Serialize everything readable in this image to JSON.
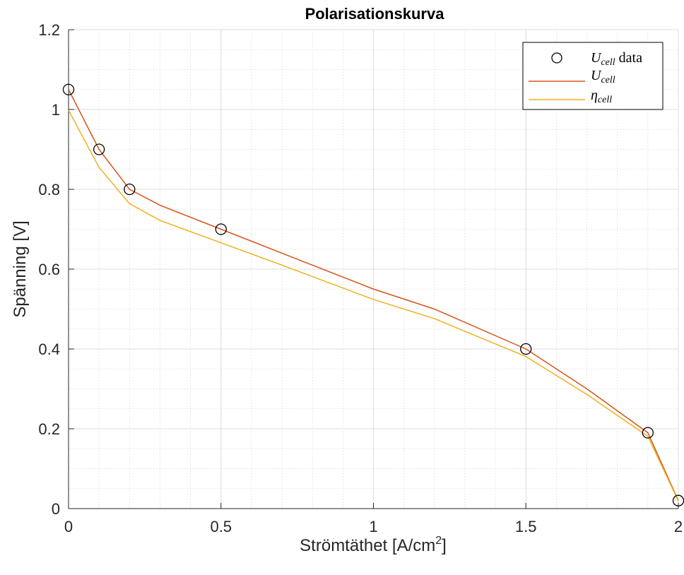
{
  "chart_data": {
    "type": "line",
    "title": "Polarisationskurva",
    "xlabel": "Strömtäthet [A/cm",
    "xlabel_sup": "2",
    "xlabel_end": "]",
    "ylabel": "Spänning [V]",
    "xlim": [
      0,
      2
    ],
    "ylim": [
      0,
      1.2
    ],
    "xticks": [
      0,
      0.5,
      1,
      1.5,
      2
    ],
    "xtick_labels": [
      "0",
      "0.5",
      "1",
      "1.5",
      "2"
    ],
    "yticks": [
      0,
      0.2,
      0.4,
      0.6,
      0.8,
      1.0,
      1.2
    ],
    "ytick_labels": [
      "0",
      "0.2",
      "0.4",
      "0.6",
      "0.8",
      "1",
      "1.2"
    ],
    "grid": true,
    "minor_grid": true,
    "legend_position": "top-right",
    "series": [
      {
        "name_main": "U",
        "name_sub": "cell",
        "name_suffix": " data",
        "style": "markers",
        "color": "#000000",
        "x": [
          0,
          0.1,
          0.2,
          0.5,
          1.5,
          1.9,
          2.0
        ],
        "y": [
          1.05,
          0.9,
          0.8,
          0.7,
          0.4,
          0.19,
          0.02
        ]
      },
      {
        "name_main": "U",
        "name_sub": "cell",
        "name_suffix": "",
        "style": "line",
        "color": "#D95319",
        "x": [
          0,
          0.1,
          0.2,
          0.3,
          0.5,
          0.7,
          1.0,
          1.2,
          1.5,
          1.7,
          1.9,
          2.0
        ],
        "y": [
          1.05,
          0.9,
          0.8,
          0.76,
          0.7,
          0.64,
          0.55,
          0.5,
          0.4,
          0.3,
          0.19,
          0.02
        ]
      },
      {
        "name_main": "η",
        "name_sub": "cell",
        "name_suffix": "",
        "style": "line",
        "color": "#EDB120",
        "x": [
          0,
          0.1,
          0.2,
          0.3,
          0.5,
          0.7,
          1.0,
          1.2,
          1.5,
          1.7,
          1.9,
          2.0
        ],
        "y": [
          0.998,
          0.855,
          0.764,
          0.722,
          0.666,
          0.61,
          0.524,
          0.476,
          0.381,
          0.286,
          0.181,
          0.019
        ]
      }
    ]
  }
}
